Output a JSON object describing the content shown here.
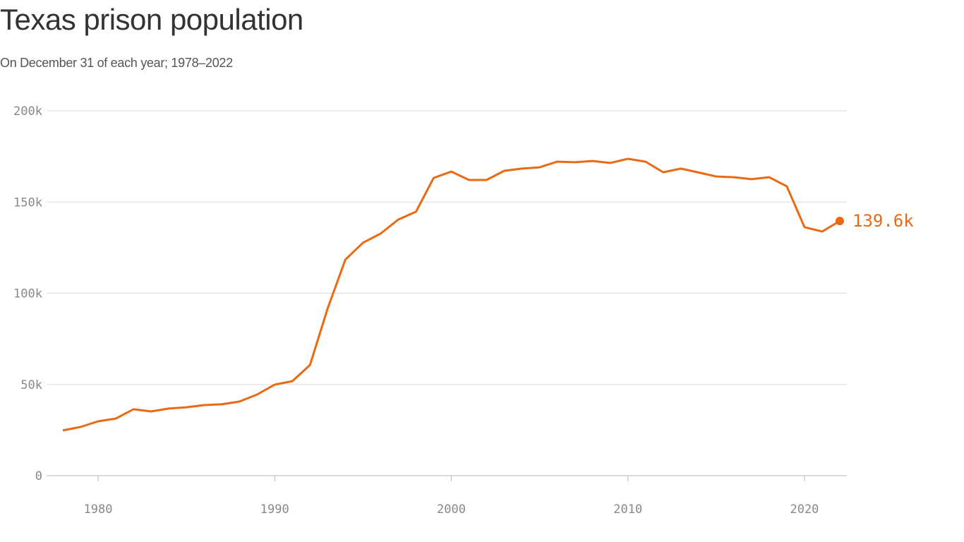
{
  "chart_data": {
    "type": "line",
    "title": "Texas prison population",
    "subtitle": "On December 31 of each year; 1978–2022",
    "xlabel": "",
    "ylabel": "",
    "xlim": [
      1978,
      2022
    ],
    "ylim": [
      0,
      200000
    ],
    "x_ticks": [
      1980,
      1990,
      2000,
      2010,
      2020
    ],
    "x_tick_labels": [
      "1980",
      "1990",
      "2000",
      "2010",
      "2020"
    ],
    "y_ticks": [
      0,
      50000,
      100000,
      150000,
      200000
    ],
    "y_tick_labels": [
      "0",
      "50k",
      "100k",
      "150k",
      "200k"
    ],
    "grid": "horizontal",
    "color": "#EA6A14",
    "end_label": "139.6k",
    "x": [
      1978,
      1979,
      1980,
      1981,
      1982,
      1983,
      1984,
      1985,
      1986,
      1987,
      1988,
      1989,
      1990,
      1991,
      1992,
      1993,
      1994,
      1995,
      1996,
      1997,
      1998,
      1999,
      2000,
      2001,
      2002,
      2003,
      2004,
      2005,
      2006,
      2007,
      2008,
      2009,
      2010,
      2011,
      2012,
      2013,
      2014,
      2015,
      2016,
      2017,
      2018,
      2019,
      2020,
      2021,
      2022
    ],
    "values": [
      24800,
      26700,
      29800,
      31300,
      36400,
      35200,
      36800,
      37500,
      38700,
      39100,
      40600,
      44500,
      49900,
      51800,
      60700,
      91700,
      118400,
      127700,
      132700,
      140400,
      144700,
      163200,
      166700,
      162100,
      162100,
      167100,
      168300,
      169000,
      172100,
      171800,
      172500,
      171400,
      173700,
      172100,
      166300,
      168300,
      166200,
      164000,
      163600,
      162500,
      163600,
      158600,
      136200,
      133800,
      139600
    ]
  }
}
